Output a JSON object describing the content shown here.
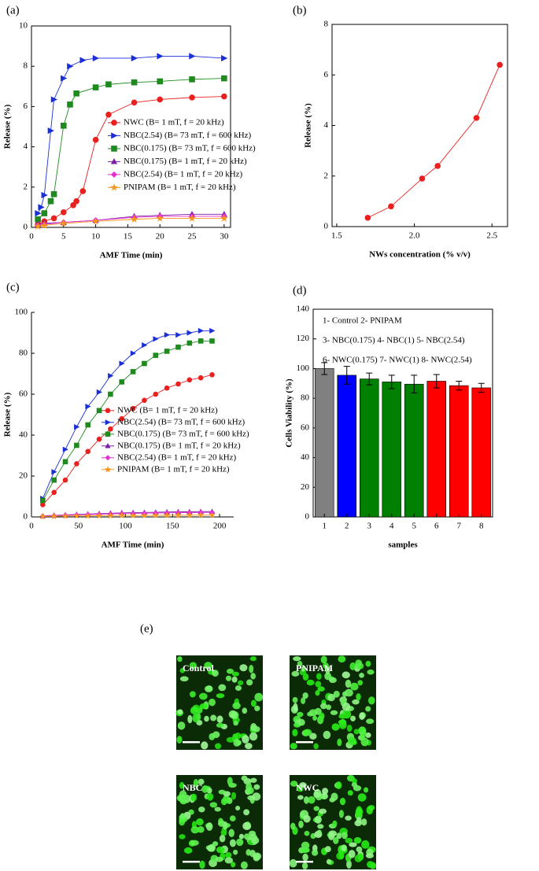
{
  "chart_data": [
    {
      "type": "line",
      "panel": "(a)",
      "xlabel": "AMF Time (min)",
      "ylabel": "Release (%)",
      "xlim": [
        0,
        31
      ],
      "xticks": [
        0,
        5,
        10,
        15,
        20,
        25,
        30
      ],
      "ylim": [
        0,
        10
      ],
      "yticks": [
        0,
        2,
        4,
        6,
        8,
        10
      ],
      "frame": true,
      "legend": "center right",
      "series": [
        {
          "name": "NWC (B= 1 mT, f = 20 kHz)",
          "color": "#e8211f",
          "marker": "circle",
          "x": [
            1,
            2,
            3.5,
            5,
            6.5,
            7,
            8,
            10,
            12,
            16,
            20,
            25,
            30
          ],
          "values": [
            0.15,
            0.3,
            0.45,
            0.75,
            1.1,
            1.3,
            1.8,
            4.35,
            5.6,
            6.2,
            6.35,
            6.45,
            6.5
          ]
        },
        {
          "name": "NBC(2.54) (B= 73 mT, f = 600 kHz)",
          "color": "#1a2fd6",
          "marker": "tri-right",
          "x": [
            1,
            1.5,
            2,
            3,
            3.5,
            5,
            6,
            8,
            10,
            16,
            20,
            25,
            30
          ],
          "values": [
            0.7,
            1.0,
            1.6,
            4.8,
            6.35,
            7.4,
            8.0,
            8.3,
            8.4,
            8.4,
            8.5,
            8.5,
            8.4
          ]
        },
        {
          "name": "NBC(0.175) (B= 73 mT, f = 600 kHz)",
          "color": "#1f8a1f",
          "marker": "square",
          "x": [
            1,
            2,
            3,
            3.5,
            5,
            6,
            7,
            10,
            12,
            16,
            20,
            25,
            30
          ],
          "values": [
            0.4,
            0.7,
            1.3,
            1.65,
            5.05,
            6.1,
            6.65,
            6.95,
            7.1,
            7.2,
            7.25,
            7.35,
            7.4
          ]
        },
        {
          "name": "NBC(0.175) (B= 1 mT, f = 20 kHz)",
          "color": "#7a1fa8",
          "marker": "tri-up",
          "x": [
            1,
            2,
            5,
            10,
            16,
            20,
            25,
            30
          ],
          "values": [
            0.15,
            0.2,
            0.25,
            0.35,
            0.55,
            0.6,
            0.65,
            0.65
          ]
        },
        {
          "name": "NBC(2.54) (B= 1 mT, f = 20 kHz)",
          "color": "#e62fd0",
          "marker": "diamond",
          "x": [
            1,
            2,
            5,
            10,
            16,
            20,
            25,
            30
          ],
          "values": [
            0.1,
            0.15,
            0.25,
            0.35,
            0.5,
            0.55,
            0.55,
            0.55
          ]
        },
        {
          "name": "PNIPAM (B= 1 mT, f = 20 kHz)",
          "color": "#f5961f",
          "marker": "star",
          "x": [
            1,
            2,
            5,
            10,
            16,
            20,
            25,
            30
          ],
          "values": [
            0.05,
            0.1,
            0.2,
            0.3,
            0.4,
            0.45,
            0.45,
            0.45
          ]
        }
      ]
    },
    {
      "type": "line",
      "panel": "(b)",
      "xlabel": "NWs concentration (% v/v)",
      "ylabel": "Release (%)",
      "xlim": [
        1.47,
        2.6
      ],
      "xticks": [
        1.5,
        {
          "value": 2,
          "label": "2.0"
        },
        2.5
      ],
      "ylim": [
        0,
        8
      ],
      "yticks": [
        0,
        2,
        4,
        6,
        8
      ],
      "frame": true,
      "series": [
        {
          "color": "#e8211f",
          "marker": "circle",
          "x": [
            1.7,
            1.85,
            2.05,
            2.15,
            2.4,
            2.55
          ],
          "values": [
            0.35,
            0.8,
            1.9,
            2.4,
            4.3,
            6.4
          ]
        }
      ]
    },
    {
      "type": "line",
      "panel": "(c)",
      "xlabel": "AMF Time (min)",
      "ylabel": "Release (%)",
      "xlim": [
        0,
        215
      ],
      "xticks": [
        0,
        50,
        100,
        150,
        200
      ],
      "ylim": [
        0,
        100
      ],
      "yticks": [
        0,
        20,
        40,
        60,
        80,
        100
      ],
      "frame": false,
      "legend": "center right",
      "x": [
        12,
        24,
        36,
        48,
        60,
        72,
        84,
        96,
        108,
        120,
        132,
        144,
        156,
        168,
        180,
        192
      ],
      "series": [
        {
          "name": "NWC (B= 1 mT, f = 20 kHz)",
          "color": "#e8211f",
          "marker": "circle",
          "values": [
            6,
            12,
            18,
            26,
            32,
            38,
            43,
            48,
            53,
            57,
            60,
            63,
            65,
            67,
            68,
            69.5
          ]
        },
        {
          "name": "NBC(2.54) (B= 73 mT, f = 600 kHz)",
          "color": "#1a2fd6",
          "marker": "tri-right",
          "values": [
            9,
            22,
            33,
            44,
            54,
            61,
            69,
            75,
            80,
            84,
            87,
            89,
            89,
            90,
            91,
            91
          ]
        },
        {
          "name": "NBC(0.175) (B= 73 mT, f = 600 kHz)",
          "color": "#1f8a1f",
          "marker": "square",
          "values": [
            8,
            18,
            27,
            35,
            45,
            52,
            60,
            66,
            71,
            75,
            79,
            81,
            83,
            85,
            86,
            86
          ]
        },
        {
          "name": "NBC(0.175) (B= 1 mT, f = 20 kHz)",
          "color": "#7a1fa8",
          "marker": "tri-up",
          "values": [
            0.5,
            0.8,
            1,
            1.2,
            1.4,
            1.6,
            1.8,
            2,
            2.1,
            2.2,
            2.3,
            2.4,
            2.5,
            2.5,
            2.6,
            2.6
          ]
        },
        {
          "name": "NBC(2.54) (B= 1 mT, f = 20 kHz)",
          "color": "#e62fd0",
          "marker": "diamond",
          "values": [
            0.4,
            0.6,
            0.8,
            1,
            1.2,
            1.3,
            1.5,
            1.6,
            1.7,
            1.8,
            1.9,
            2,
            2.1,
            2.1,
            2.2,
            2.2
          ]
        },
        {
          "name": "PNIPAM (B= 1 mT, f = 20 kHz)",
          "color": "#f5961f",
          "marker": "star",
          "values": [
            0.2,
            0.3,
            0.4,
            0.5,
            0.5,
            0.6,
            0.6,
            0.7,
            0.7,
            0.7,
            0.8,
            0.8,
            0.8,
            0.8,
            0.9,
            0.9
          ]
        }
      ]
    },
    {
      "type": "bar",
      "panel": "(d)",
      "xlabel": "samples",
      "ylabel": "Cells Viability (%)",
      "categories": [
        "1",
        "2",
        "3",
        "4",
        "5",
        "6",
        "7",
        "8"
      ],
      "values": [
        100,
        95.5,
        93,
        91,
        89.5,
        91.5,
        88.5,
        87
      ],
      "errors": [
        4,
        6,
        4,
        4.5,
        6,
        4.5,
        3,
        3
      ],
      "colors": [
        "#808080",
        "#0000ff",
        "#008000",
        "#008000",
        "#008000",
        "#ff0000",
        "#ff0000",
        "#ff0000"
      ],
      "ylim": [
        0,
        140
      ],
      "yticks": [
        0,
        20,
        40,
        60,
        80,
        100,
        120,
        140
      ],
      "frame": true,
      "annotations": [
        "1- Control  2- PNIPAM",
        "3- NBC(0.175)  4- NBC(1)  5- NBC(2.54)",
        "6- NWC(0.175)  7- NWC(1)  8- NWC(2.54)"
      ]
    }
  ],
  "panel_e": {
    "label": "(e)",
    "images": [
      "Control",
      "PNIPAM",
      "NBC",
      "NWC"
    ]
  }
}
